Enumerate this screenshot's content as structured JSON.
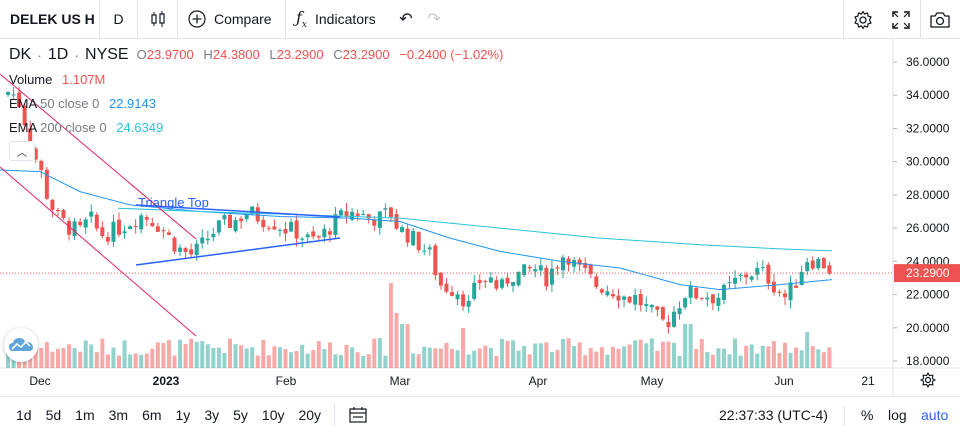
{
  "toolbar": {
    "symbol": "DELEK US H",
    "interval": "D",
    "compare_label": "Compare",
    "indicators_label": "Indicators"
  },
  "legend": {
    "symbol": "DK",
    "interval": "1D",
    "exchange": "NYSE",
    "dot": "·",
    "open_key": "O",
    "open": "23.9700",
    "high_key": "H",
    "high": "24.3800",
    "low_key": "L",
    "low": "23.2900",
    "close_key": "C",
    "close": "23.2900",
    "change": "−0.2400 (−1.02%)"
  },
  "indicators": [
    {
      "name": "Volume",
      "params": "",
      "value": "1.107M",
      "color": "#ef5350"
    },
    {
      "name": "EMA",
      "params": "50 close 0",
      "value": "22.9143",
      "color": "#2196f3"
    },
    {
      "name": "EMA",
      "params": "200 close 0",
      "value": "24.6349",
      "color": "#26c6da"
    }
  ],
  "pattern_label": "Triangle Top",
  "price_axis": {
    "ticks": [
      "36.0000",
      "34.0000",
      "32.0000",
      "30.0000",
      "28.0000",
      "26.0000",
      "24.0000",
      "22.0000",
      "20.0000",
      "18.0000"
    ],
    "last_price": "23.2900",
    "last_price_color": "#ef5350"
  },
  "time_axis": {
    "ticks": [
      "Dec",
      "2023",
      "Feb",
      "Mar",
      "Apr",
      "May",
      "Jun",
      "21"
    ]
  },
  "bottom": {
    "ranges": [
      "1d",
      "5d",
      "1m",
      "3m",
      "6m",
      "1y",
      "3y",
      "5y",
      "10y",
      "20y"
    ],
    "time": "22:37:33 (UTC-4)",
    "percent": "%",
    "log": "log",
    "auto": "auto"
  },
  "colors": {
    "up": "#26a69a",
    "down": "#ef5350",
    "ema50": "#2196f3",
    "ema200": "#26c6da",
    "drawing": "#e91e63",
    "pattern": "#2962ff"
  }
}
